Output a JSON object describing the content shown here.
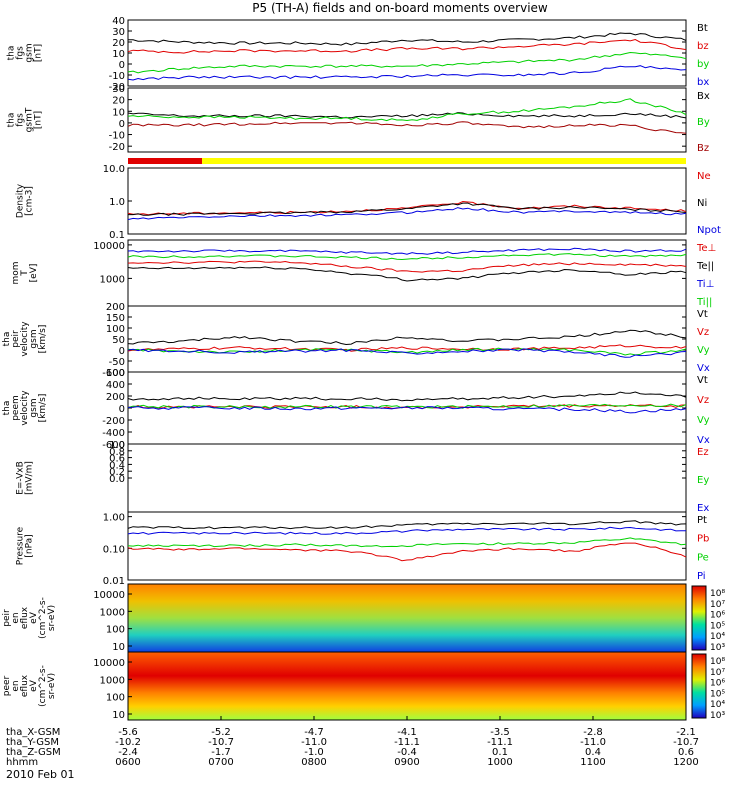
{
  "title": "P5 (TH-A) fields and on-board moments overview",
  "date_label": "2010 Feb 01",
  "colors": {
    "black": "#000000",
    "red": "#e00000",
    "green": "#00d000",
    "blue": "#0000e0",
    "dred": "#a00000",
    "bar_red": "#e00000",
    "bar_yellow": "#ffff00"
  },
  "chart_data": {
    "type": "line",
    "x_range_hhmm": [
      "0600",
      "1200"
    ],
    "time_axis": {
      "rows": [
        {
          "label": "tha_X-GSM",
          "values": [
            "-5.6",
            "-5.2",
            "-4.7",
            "-4.1",
            "-3.5",
            "-2.8",
            "-2.1"
          ]
        },
        {
          "label": "tha_Y-GSM",
          "values": [
            "-10.2",
            "-10.7",
            "-11.0",
            "-11.1",
            "-11.1",
            "-11.0",
            "-10.7"
          ]
        },
        {
          "label": "tha_Z-GSM",
          "values": [
            "-2.4",
            "-1.7",
            "-1.0",
            "-0.4",
            "0.1",
            "0.4",
            "0.6"
          ]
        },
        {
          "label": "hhmm",
          "values": [
            "0600",
            "0700",
            "0800",
            "0900",
            "1000",
            "1100",
            "1200"
          ]
        }
      ]
    },
    "panels": [
      {
        "id": "fgs",
        "ylabel": [
          "tha",
          "fgs",
          "gsm",
          "[nT]"
        ],
        "scale": "linear",
        "ylim": [
          -20,
          40
        ],
        "ticks": [
          "40",
          "30",
          "20",
          "10",
          "0",
          "-10",
          "-20"
        ],
        "series": [
          {
            "name": "Bt",
            "color": "black",
            "values": [
              22,
              20,
              19,
              19,
              18,
              22,
              20,
              22,
              24,
              28,
              22
            ]
          },
          {
            "name": "bz",
            "color": "red",
            "values": [
              12,
              11,
              12,
              12,
              12,
              14,
              14,
              16,
              18,
              22,
              14
            ]
          },
          {
            "name": "by",
            "color": "green",
            "values": [
              -8,
              -4,
              -2,
              -2,
              -2,
              -2,
              0,
              2,
              4,
              10,
              6
            ]
          },
          {
            "name": "bx",
            "color": "blue",
            "values": [
              -14,
              -12,
              -12,
              -12,
              -12,
              -11,
              -10,
              -10,
              -8,
              -2,
              -6
            ]
          }
        ]
      },
      {
        "id": "fgs_gsmt",
        "ylabel": [
          "tha",
          "fgs",
          "gsmT",
          "[nT]"
        ],
        "scale": "linear",
        "ylim": [
          -25,
          30
        ],
        "ticks": [
          "30",
          "20",
          "10",
          "0",
          "-10",
          "-20"
        ],
        "series": [
          {
            "name": "Bx",
            "color": "black",
            "values": [
              8,
              6,
              6,
              6,
              5,
              6,
              8,
              6,
              6,
              8,
              5
            ]
          },
          {
            "name": "By",
            "color": "green",
            "values": [
              6,
              5,
              5,
              4,
              4,
              2,
              8,
              10,
              14,
              20,
              8
            ]
          },
          {
            "name": "Bz",
            "color": "dred",
            "values": [
              -2,
              -2,
              -1,
              0,
              0,
              -2,
              0,
              -4,
              -2,
              -2,
              -10
            ]
          }
        ]
      },
      {
        "id": "density",
        "ylabel": [
          "Density",
          "[cm-3]"
        ],
        "scale": "log",
        "ylim": [
          0.1,
          10
        ],
        "ticks": [
          "10.0",
          "1.0",
          "0.1"
        ],
        "series": [
          {
            "name": "Ne",
            "color": "red",
            "values": [
              0.4,
              0.42,
              0.44,
              0.45,
              0.5,
              0.6,
              0.9,
              0.6,
              0.7,
              0.6,
              0.5
            ]
          },
          {
            "name": "Ni",
            "color": "black",
            "values": [
              0.38,
              0.4,
              0.42,
              0.44,
              0.48,
              0.58,
              0.85,
              0.58,
              0.65,
              0.55,
              0.48
            ]
          },
          {
            "name": "Npot",
            "color": "blue",
            "values": [
              0.28,
              0.32,
              0.35,
              0.36,
              0.38,
              0.45,
              0.6,
              0.45,
              0.5,
              0.45,
              0.4
            ]
          }
        ]
      },
      {
        "id": "temp",
        "ylabel": [
          "mom",
          "T",
          "[eV]"
        ],
        "scale": "log",
        "ylim": [
          150,
          14000
        ],
        "ticks": [
          "10000",
          "1000"
        ],
        "series": [
          {
            "name": "Te⊥",
            "color": "red",
            "values": [
              3000,
              3000,
              3100,
              3000,
              2200,
              1600,
              1700,
              2500,
              2800,
              2600,
              2400
            ]
          },
          {
            "name": "Te||",
            "color": "black",
            "values": [
              2000,
              2000,
              2100,
              2000,
              1400,
              900,
              1000,
              1500,
              1800,
              1300,
              1600
            ]
          },
          {
            "name": "Ti⊥",
            "color": "blue",
            "values": [
              6500,
              6500,
              6700,
              6500,
              6000,
              5500,
              6000,
              7000,
              7500,
              6500,
              7000
            ]
          },
          {
            "name": "Ti||",
            "color": "green",
            "values": [
              4500,
              4500,
              4700,
              4600,
              4200,
              3800,
              4300,
              5000,
              5200,
              4500,
              5000
            ]
          }
        ]
      },
      {
        "id": "peir_vel",
        "ylabel": [
          "tha",
          "peir",
          "velocity",
          "gsm",
          "[km/s]"
        ],
        "scale": "linear",
        "ylim": [
          -100,
          200
        ],
        "ticks": [
          "200",
          "150",
          "100",
          "50",
          "0",
          "-50",
          "-100"
        ],
        "series": [
          {
            "name": "Vt",
            "color": "black",
            "values": [
              30,
              40,
              60,
              40,
              30,
              60,
              40,
              50,
              60,
              90,
              60
            ]
          },
          {
            "name": "Vz",
            "color": "red",
            "values": [
              0,
              5,
              10,
              5,
              0,
              10,
              5,
              5,
              10,
              20,
              10
            ]
          },
          {
            "name": "Vy",
            "color": "green",
            "values": [
              0,
              -5,
              -10,
              0,
              0,
              -10,
              0,
              5,
              0,
              -20,
              0
            ]
          },
          {
            "name": "Vx",
            "color": "blue",
            "values": [
              0,
              -5,
              -10,
              -5,
              0,
              -15,
              -5,
              0,
              -10,
              -30,
              -10
            ]
          }
        ]
      },
      {
        "id": "peem_vel",
        "ylabel": [
          "tha",
          "peem",
          "velocity",
          "gsm",
          "[km/s]"
        ],
        "scale": "linear",
        "ylim": [
          -600,
          600
        ],
        "ticks": [
          "600",
          "400",
          "200",
          "0",
          "-200",
          "-400",
          "-600"
        ],
        "series": [
          {
            "name": "Vt",
            "color": "black",
            "values": [
              150,
              160,
              150,
              160,
              150,
              140,
              150,
              180,
              200,
              260,
              200
            ]
          },
          {
            "name": "Vz",
            "color": "red",
            "values": [
              20,
              20,
              20,
              20,
              20,
              10,
              20,
              30,
              30,
              40,
              30
            ]
          },
          {
            "name": "Vy",
            "color": "green",
            "values": [
              30,
              20,
              20,
              20,
              20,
              20,
              20,
              30,
              40,
              50,
              40
            ]
          },
          {
            "name": "Vx",
            "color": "blue",
            "values": [
              0,
              0,
              0,
              -10,
              0,
              0,
              0,
              -20,
              -20,
              -60,
              -20
            ]
          }
        ]
      },
      {
        "id": "efield",
        "ylabel": [
          "E=-VxB",
          "[mV/m]"
        ],
        "scale": "linear",
        "ylim": [
          -1,
          1
        ],
        "ticks": [
          "1.0",
          "0.8",
          "0.6",
          "0.4",
          "0.2",
          "0.0"
        ],
        "series": [
          {
            "name": "Ez",
            "color": "red",
            "values": []
          },
          {
            "name": "Ey",
            "color": "green",
            "values": []
          },
          {
            "name": "Ex",
            "color": "blue",
            "values": []
          }
        ]
      },
      {
        "id": "pressure",
        "ylabel": [
          "Pressure",
          "[nPa]"
        ],
        "scale": "log",
        "ylim": [
          0.01,
          1.4
        ],
        "ticks": [
          "1.00",
          "0.10",
          "0.01"
        ],
        "series": [
          {
            "name": "Pt",
            "color": "black",
            "values": [
              0.45,
              0.45,
              0.45,
              0.45,
              0.45,
              0.55,
              0.6,
              0.6,
              0.6,
              0.7,
              0.55
            ]
          },
          {
            "name": "Pb",
            "color": "red",
            "values": [
              0.1,
              0.09,
              0.1,
              0.09,
              0.08,
              0.04,
              0.08,
              0.1,
              0.08,
              0.15,
              0.05
            ]
          },
          {
            "name": "Pe",
            "color": "green",
            "values": [
              0.12,
              0.12,
              0.12,
              0.13,
              0.12,
              0.12,
              0.14,
              0.14,
              0.15,
              0.2,
              0.13
            ]
          },
          {
            "name": "Pi",
            "color": "blue",
            "values": [
              0.3,
              0.3,
              0.3,
              0.3,
              0.3,
              0.35,
              0.4,
              0.4,
              0.4,
              0.45,
              0.35
            ]
          }
        ]
      }
    ],
    "spectrograms": [
      {
        "id": "peir_eflux",
        "ylabel": [
          "tha",
          "peir",
          "en",
          "eflux",
          "eV",
          "(cm^2-s-",
          "sr-eV)"
        ],
        "ticks": [
          "10000",
          "1000",
          "100",
          "10"
        ],
        "colorbar": {
          "ticks": [
            "10⁸",
            "10⁷",
            "10⁶",
            "10⁵",
            "10⁴",
            "10³"
          ]
        }
      },
      {
        "id": "peer_eflux",
        "ylabel": [
          "tha",
          "peer",
          "en",
          "eflux",
          "eV",
          "(cm^2-s-",
          "sr-eV)"
        ],
        "ticks": [
          "10000",
          "1000",
          "100",
          "10"
        ],
        "colorbar": {
          "ticks": [
            "10⁸",
            "10⁷",
            "10⁶",
            "10⁵",
            "10⁴",
            "10³"
          ]
        }
      }
    ]
  }
}
